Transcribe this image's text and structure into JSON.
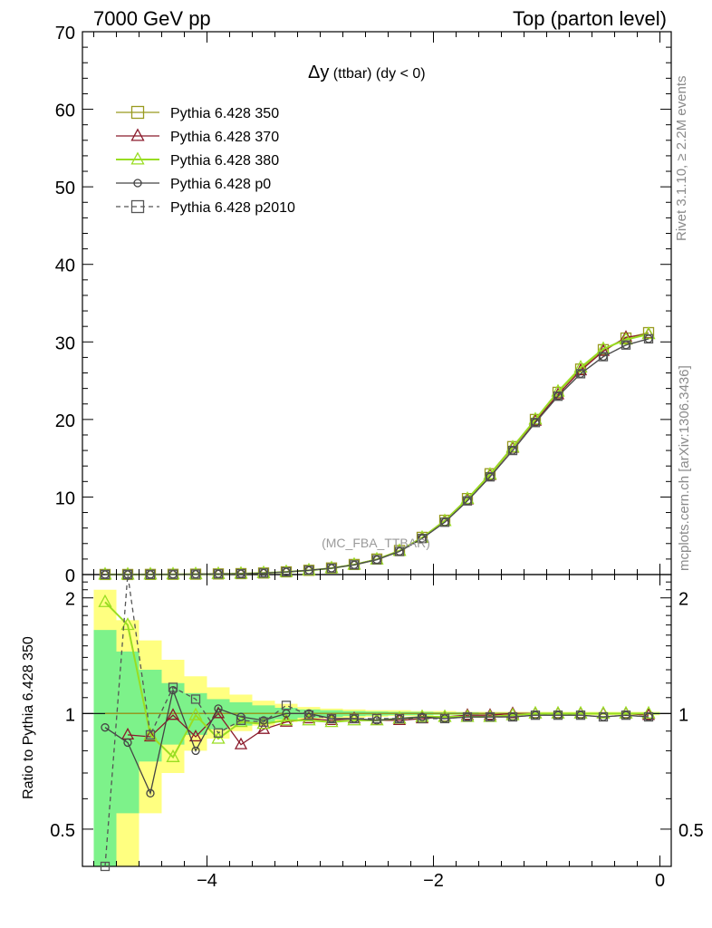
{
  "header": {
    "left": "7000 GeV pp",
    "right": "Top (parton level)",
    "side_top": "Rivet 3.1.10, ≥ 2.2M events",
    "side_bottom": "mcplots.cern.ch [arXiv:1306.3436]"
  },
  "plot_title": {
    "main": "Δy",
    "sub": " (ttbar)  (dy < 0)"
  },
  "watermark": "(MC_FBA_TTBAR)",
  "ratio_ylabel": "Ratio to Pythia 6.428 350",
  "main_yticks": [
    "0",
    "10",
    "20",
    "30",
    "40",
    "50",
    "60",
    "70"
  ],
  "ratio_yticks": [
    "0.5",
    "1",
    "2"
  ],
  "xticks": [
    "−4",
    "−2",
    "0"
  ],
  "legend": [
    {
      "label": "Pythia 6.428 350",
      "color": "#999a1f",
      "marker": "square",
      "dash": false
    },
    {
      "label": "Pythia 6.428 370",
      "color": "#8b1a2b",
      "marker": "triangle",
      "dash": false
    },
    {
      "label": "Pythia 6.428 380",
      "color": "#99dd22",
      "marker": "triangle",
      "dash": false
    },
    {
      "label": "Pythia 6.428 p0",
      "color": "#444444",
      "marker": "circle",
      "dash": false
    },
    {
      "label": "Pythia 6.428 p2010",
      "color": "#555555",
      "marker": "square",
      "dash": true
    }
  ],
  "chart_data": [
    {
      "type": "line",
      "panel": "main",
      "title": "Δy (ttbar) (dy < 0)",
      "xlim": [
        -5.1,
        0.1
      ],
      "ylim": [
        0,
        70
      ],
      "x": [
        -4.9,
        -4.7,
        -4.5,
        -4.3,
        -4.1,
        -3.9,
        -3.7,
        -3.5,
        -3.3,
        -3.1,
        -2.9,
        -2.7,
        -2.5,
        -2.3,
        -2.1,
        -1.9,
        -1.7,
        -1.5,
        -1.3,
        -1.1,
        -0.9,
        -0.7,
        -0.5,
        -0.3,
        -0.1
      ],
      "series": [
        {
          "name": "Pythia 6.428 350",
          "values": [
            0.01,
            0.01,
            0.02,
            0.03,
            0.05,
            0.08,
            0.12,
            0.2,
            0.35,
            0.55,
            0.85,
            1.3,
            2.0,
            3.1,
            4.8,
            7.0,
            9.8,
            13.0,
            16.5,
            20.0,
            23.5,
            26.5,
            29.0,
            30.5,
            31.2
          ]
        },
        {
          "name": "Pythia 6.428 370",
          "values": [
            0.01,
            0.01,
            0.02,
            0.03,
            0.05,
            0.08,
            0.11,
            0.19,
            0.34,
            0.54,
            0.83,
            1.27,
            1.95,
            3.05,
            4.7,
            6.85,
            9.65,
            12.8,
            16.3,
            19.8,
            23.2,
            26.3,
            28.8,
            30.6,
            31.0
          ]
        },
        {
          "name": "Pythia 6.428 380",
          "values": [
            0.01,
            0.01,
            0.02,
            0.03,
            0.05,
            0.08,
            0.12,
            0.2,
            0.34,
            0.54,
            0.82,
            1.27,
            1.95,
            3.05,
            4.75,
            6.9,
            9.75,
            12.9,
            16.4,
            20.0,
            23.6,
            26.7,
            29.1,
            30.3,
            31.0
          ]
        },
        {
          "name": "Pythia 6.428 p0",
          "values": [
            0.01,
            0.01,
            0.02,
            0.03,
            0.05,
            0.08,
            0.11,
            0.19,
            0.34,
            0.55,
            0.82,
            1.25,
            1.92,
            2.98,
            4.65,
            6.75,
            9.5,
            12.6,
            16.0,
            19.6,
            23.0,
            25.9,
            28.1,
            29.6,
            30.4
          ]
        },
        {
          "name": "Pythia 6.428 p2010",
          "values": [
            0.01,
            0.01,
            0.02,
            0.03,
            0.05,
            0.08,
            0.11,
            0.19,
            0.34,
            0.55,
            0.82,
            1.25,
            1.92,
            2.98,
            4.65,
            6.75,
            9.5,
            12.6,
            16.0,
            19.6,
            23.0,
            25.9,
            28.1,
            29.6,
            30.4
          ]
        }
      ]
    },
    {
      "type": "line",
      "panel": "ratio",
      "ylabel": "Ratio to Pythia 6.428 350",
      "log_y": true,
      "xlim": [
        -5.1,
        0.1
      ],
      "ylim": [
        0.4,
        2.3
      ],
      "x": [
        -4.9,
        -4.7,
        -4.5,
        -4.3,
        -4.1,
        -3.9,
        -3.7,
        -3.5,
        -3.3,
        -3.1,
        -2.9,
        -2.7,
        -2.5,
        -2.3,
        -2.1,
        -1.9,
        -1.7,
        -1.5,
        -1.3,
        -1.1,
        -0.9,
        -0.7,
        -0.5,
        -0.3,
        -0.1
      ],
      "band_yellow": {
        "lo": [
          0.3,
          0.3,
          0.55,
          0.7,
          0.8,
          0.86,
          0.9,
          0.93,
          0.95,
          0.96,
          0.97,
          0.975,
          0.98,
          0.985,
          0.985,
          0.99,
          0.99,
          0.99,
          0.99,
          0.99,
          0.99,
          0.99,
          0.99,
          0.99,
          0.99
        ],
        "hi": [
          2.1,
          1.75,
          1.55,
          1.38,
          1.25,
          1.17,
          1.12,
          1.08,
          1.06,
          1.04,
          1.03,
          1.025,
          1.02,
          1.02,
          1.015,
          1.015,
          1.01,
          1.01,
          1.01,
          1.01,
          1.01,
          1.01,
          1.01,
          1.01,
          1.01
        ]
      },
      "band_green": {
        "lo": [
          0.38,
          0.55,
          0.75,
          0.83,
          0.88,
          0.91,
          0.93,
          0.95,
          0.965,
          0.975,
          0.98,
          0.985,
          0.988,
          0.99,
          0.99,
          0.993,
          0.993,
          0.995,
          0.995,
          0.995,
          0.995,
          0.995,
          0.995,
          0.995,
          0.995
        ],
        "hi": [
          1.65,
          1.45,
          1.3,
          1.2,
          1.13,
          1.09,
          1.07,
          1.05,
          1.035,
          1.025,
          1.02,
          1.015,
          1.012,
          1.01,
          1.01,
          1.007,
          1.007,
          1.005,
          1.005,
          1.005,
          1.005,
          1.005,
          1.005,
          1.005,
          1.005
        ]
      },
      "series": [
        {
          "name": "Pythia 6.428 350",
          "values": [
            1,
            1,
            1,
            1,
            1,
            1,
            1,
            1,
            1,
            1,
            1,
            1,
            1,
            1,
            1,
            1,
            1,
            1,
            1,
            1,
            1,
            1,
            1,
            1,
            1
          ]
        },
        {
          "name": "Pythia 6.428 370",
          "values": [
            null,
            0.88,
            0.87,
            0.99,
            0.87,
            1.0,
            0.83,
            0.91,
            0.95,
            0.97,
            0.96,
            0.97,
            0.96,
            0.96,
            0.97,
            0.98,
            0.99,
            0.99,
            1.0,
            1.0,
            1.0,
            1.0,
            1.0,
            1.0,
            0.99
          ]
        },
        {
          "name": "Pythia 6.428 380",
          "values": [
            1.95,
            1.7,
            0.88,
            0.77,
            0.99,
            0.86,
            0.95,
            0.94,
            0.96,
            0.96,
            0.95,
            0.96,
            0.96,
            0.97,
            0.98,
            0.98,
            0.98,
            0.98,
            0.99,
            1.0,
            1.0,
            1.0,
            1.0,
            1.0,
            1.0
          ]
        },
        {
          "name": "Pythia 6.428 p0",
          "values": [
            0.92,
            0.84,
            0.62,
            1.15,
            0.8,
            1.03,
            0.98,
            0.96,
            1.0,
            1.0,
            0.97,
            0.97,
            0.96,
            0.97,
            0.98,
            0.97,
            0.98,
            0.98,
            0.98,
            0.99,
            0.99,
            0.99,
            0.98,
            0.99,
            0.98
          ]
        },
        {
          "name": "Pythia 6.428 p2010",
          "values": [
            0.35,
            2.3,
            0.88,
            1.17,
            1.09,
            0.89,
            0.96,
            0.95,
            1.05,
            0.99,
            0.97,
            0.97,
            0.97,
            0.97,
            0.97,
            0.97,
            0.98,
            0.98,
            0.98,
            0.99,
            0.99,
            0.99,
            0.98,
            0.99,
            0.98
          ]
        }
      ]
    }
  ]
}
